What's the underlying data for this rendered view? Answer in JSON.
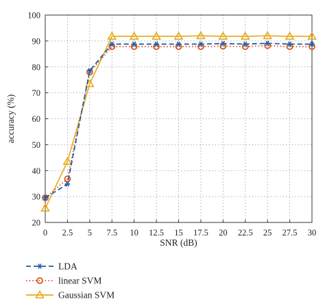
{
  "chart_data": {
    "type": "line",
    "xlabel": "SNR (dB)",
    "ylabel": "accuracy (%)",
    "x": [
      0,
      2.5,
      5,
      7.5,
      10,
      12.5,
      15,
      17.5,
      20,
      22.5,
      25,
      27.5,
      30
    ],
    "x_tick_labels": [
      "0",
      "2.5",
      "5",
      "7.5",
      "10",
      "12.5",
      "15",
      "17.5",
      "20",
      "22.5",
      "25",
      "27.5",
      "30"
    ],
    "xlim": [
      0,
      30
    ],
    "ylim": [
      20,
      100
    ],
    "y_ticks": [
      20,
      30,
      40,
      50,
      60,
      70,
      80,
      90,
      100
    ],
    "y_tick_labels": [
      "20",
      "30",
      "40",
      "50",
      "60",
      "70",
      "80",
      "90",
      "100"
    ],
    "grid": true,
    "legend_position": "below",
    "series": [
      {
        "name": "LDA",
        "color": "#1f5fa8",
        "line_style": "dash",
        "marker": "asterisk",
        "values": [
          29.5,
          34.8,
          78.5,
          88.8,
          88.8,
          88.8,
          88.8,
          88.8,
          89.0,
          88.8,
          89.1,
          88.8,
          88.8
        ]
      },
      {
        "name": "linear SVM",
        "color": "#d9531e",
        "line_style": "dot",
        "marker": "circle",
        "values": [
          29.5,
          36.8,
          78.0,
          87.8,
          87.8,
          87.8,
          87.8,
          87.8,
          88.0,
          87.8,
          88.2,
          87.8,
          87.8
        ]
      },
      {
        "name": "Gaussian SVM",
        "color": "#e6a91a",
        "line_style": "solid",
        "marker": "triangle",
        "values": [
          25.5,
          43.5,
          73.5,
          91.8,
          91.8,
          91.8,
          91.8,
          92.0,
          91.8,
          91.8,
          92.0,
          91.8,
          91.8
        ]
      }
    ]
  }
}
